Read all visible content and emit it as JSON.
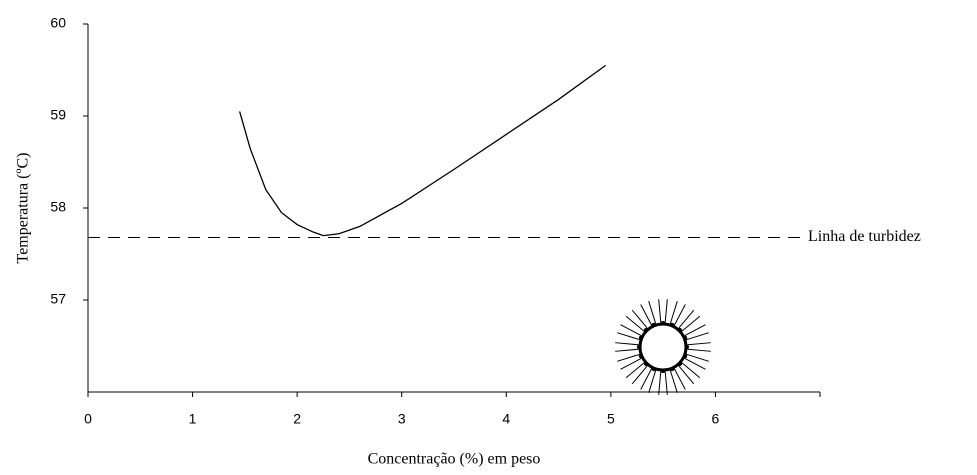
{
  "chart_data": {
    "type": "line",
    "x_label": "Concentração (%) em peso",
    "y_label": "Temperatura  (ºC)",
    "x": [
      1.45,
      1.55,
      1.7,
      1.85,
      2.0,
      2.15,
      2.25,
      2.4,
      2.6,
      3.0,
      3.5,
      4.0,
      4.5,
      4.95
    ],
    "series": [
      {
        "color": "#000000",
        "values": [
          59.05,
          58.65,
          58.2,
          57.95,
          57.82,
          57.74,
          57.7,
          57.72,
          57.8,
          58.05,
          58.42,
          58.8,
          59.18,
          59.55
        ]
      }
    ],
    "reference_line": {
      "value": 57.68,
      "label": "Linha de turbidez",
      "style": "dashed"
    },
    "xlim": [
      0,
      7
    ],
    "xticks": [
      0,
      1,
      2,
      3,
      4,
      5,
      6
    ],
    "ylim": [
      56,
      60
    ],
    "yticks": [
      57,
      58,
      59,
      60
    ],
    "grid": false
  }
}
